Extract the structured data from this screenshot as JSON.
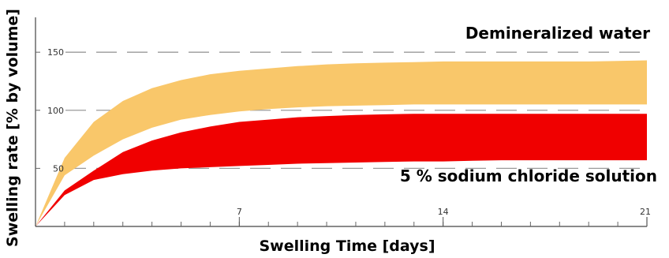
{
  "chart_data": {
    "type": "area",
    "xlabel": "Swelling Time [days]",
    "ylabel": "Swelling rate [% by volume]",
    "xlim": [
      0,
      21
    ],
    "ylim": [
      0,
      180
    ],
    "x_ticks": [
      7,
      14,
      21
    ],
    "y_ticks": [
      50,
      100,
      150
    ],
    "grid": "horizontal dashed",
    "legend": "inline labels",
    "series": [
      {
        "name": "Demineralized water",
        "color": "#F9C76A",
        "x": [
          0,
          1,
          2,
          3,
          4,
          5,
          6,
          7,
          8,
          9,
          10,
          11,
          12,
          13,
          14,
          15,
          16,
          17,
          18,
          19,
          20,
          21
        ],
        "lower": [
          0,
          44,
          61,
          75,
          85,
          92,
          96,
          99,
          101,
          102.5,
          103.5,
          104,
          104.5,
          105,
          105,
          105,
          105,
          105,
          105,
          105,
          105,
          105
        ],
        "upper": [
          0,
          59,
          90,
          108,
          119,
          126,
          131,
          134,
          136,
          138,
          139.5,
          140.5,
          141,
          141.5,
          142,
          142,
          142,
          142,
          142,
          142,
          142.5,
          143
        ]
      },
      {
        "name": "5 % sodium chloride solution",
        "color": "#F00000",
        "x": [
          0,
          1,
          2,
          3,
          4,
          5,
          6,
          7,
          8,
          9,
          10,
          11,
          12,
          13,
          14,
          15,
          16,
          17,
          18,
          19,
          20,
          21
        ],
        "lower": [
          0,
          27,
          40,
          45,
          48,
          50,
          51,
          52,
          53,
          54,
          54.5,
          55,
          55.5,
          56,
          56,
          56.5,
          57,
          57,
          57,
          57,
          57,
          57
        ],
        "upper": [
          0,
          31,
          48,
          64,
          74,
          81,
          86,
          90,
          92,
          94,
          95,
          96,
          96.5,
          97,
          97,
          97,
          97,
          97,
          97,
          97,
          97,
          97
        ]
      }
    ]
  }
}
